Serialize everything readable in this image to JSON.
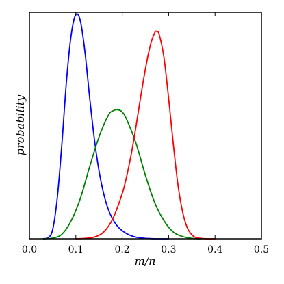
{
  "chart_data": {
    "type": "line",
    "title": "",
    "xlabel": "m/n",
    "ylabel": "probability",
    "xlim": [
      0.0,
      0.5
    ],
    "ylim": [
      0.0,
      1.0
    ],
    "x_ticks": [
      "0.0",
      "0.1",
      "0.2",
      "0.3",
      "0.4",
      "0.5"
    ],
    "y_ticks": [],
    "grid": false,
    "series": [
      {
        "color": "#0000ff",
        "x": [
          0.03,
          0.04,
          0.05,
          0.06,
          0.07,
          0.08,
          0.09,
          0.1,
          0.11,
          0.12,
          0.13,
          0.14,
          0.15,
          0.16,
          0.17,
          0.18,
          0.19,
          0.2,
          0.21,
          0.22,
          0.23,
          0.24,
          0.25,
          0.26,
          0.27,
          0.28,
          0.29,
          0.3
        ],
        "y": [
          0.0,
          0.004,
          0.04,
          0.18,
          0.42,
          0.7,
          0.9,
          0.99,
          0.96,
          0.82,
          0.62,
          0.44,
          0.3,
          0.2,
          0.13,
          0.085,
          0.055,
          0.036,
          0.022,
          0.013,
          0.007,
          0.004,
          0.002,
          0.001,
          0.0,
          0.0,
          0.0,
          0.0
        ]
      },
      {
        "color": "#008000",
        "x": [
          0.03,
          0.05,
          0.07,
          0.09,
          0.11,
          0.13,
          0.15,
          0.17,
          0.18,
          0.19,
          0.2,
          0.21,
          0.23,
          0.25,
          0.27,
          0.29,
          0.31,
          0.33,
          0.35,
          0.37
        ],
        "y": [
          0.0,
          0.003,
          0.02,
          0.08,
          0.18,
          0.32,
          0.45,
          0.545,
          0.565,
          0.57,
          0.56,
          0.525,
          0.42,
          0.28,
          0.16,
          0.08,
          0.03,
          0.01,
          0.002,
          0.0
        ]
      },
      {
        "color": "#ff0000",
        "x": [
          0.1,
          0.12,
          0.14,
          0.16,
          0.18,
          0.2,
          0.21,
          0.22,
          0.23,
          0.24,
          0.25,
          0.26,
          0.27,
          0.275,
          0.28,
          0.29,
          0.3,
          0.31,
          0.32,
          0.33,
          0.34,
          0.35,
          0.36,
          0.38,
          0.4
        ],
        "y": [
          0.0,
          0.002,
          0.008,
          0.03,
          0.09,
          0.2,
          0.28,
          0.38,
          0.5,
          0.63,
          0.75,
          0.85,
          0.91,
          0.915,
          0.9,
          0.8,
          0.62,
          0.42,
          0.24,
          0.12,
          0.05,
          0.018,
          0.005,
          0.0,
          0.0
        ]
      }
    ]
  }
}
